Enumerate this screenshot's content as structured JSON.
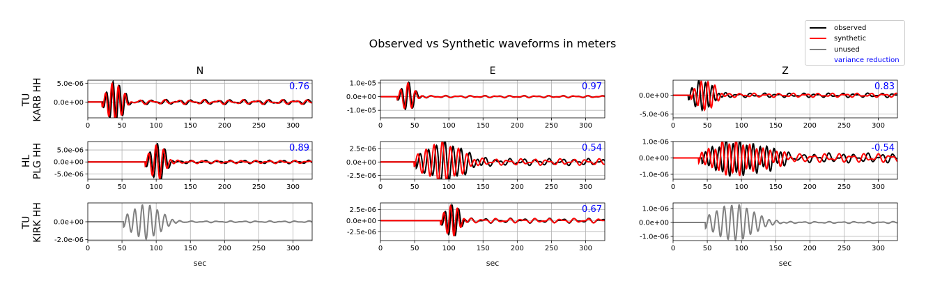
{
  "title": "Observed vs Synthetic waveforms in meters",
  "legend": {
    "observed": "observed",
    "synthetic": "synthetic",
    "unused": "unused",
    "variance_reduction": "variance reduction"
  },
  "colors": {
    "observed": "#000000",
    "synthetic": "#ff0000",
    "unused": "#808080",
    "variance_reduction": "#0000ff"
  },
  "columns": [
    "N",
    "E",
    "Z"
  ],
  "rows": [
    {
      "label_top": "TU",
      "label_bottom": "KARB HH"
    },
    {
      "label_top": "HL",
      "label_bottom": "PLG HH"
    },
    {
      "label_top": "TU",
      "label_bottom": "KIRK HH"
    }
  ],
  "xlabel": "sec",
  "chart_data": {
    "type": "line",
    "grid": true,
    "legend_placement": "top-right",
    "xlim": [
      0,
      328
    ],
    "xticks": [
      0,
      50,
      100,
      150,
      200,
      250,
      300
    ],
    "panels": [
      {
        "row": 0,
        "col": 0,
        "component": "N",
        "variance_reduction": "0.76",
        "used": true,
        "ylim": [
          -4.2e-06,
          5.8e-06
        ],
        "yticks": [
          0,
          5e-06
        ],
        "ytick_labels": [
          "0.0e+00",
          "5.0e-06"
        ],
        "amplitude": 5.4e-06,
        "arrival": 25,
        "period": 9.5,
        "cycles": 3.5,
        "coda_amp": 0.12,
        "syn_shift": 1.2
      },
      {
        "row": 0,
        "col": 1,
        "component": "E",
        "variance_reduction": "0.97",
        "used": true,
        "ylim": [
          -1.55e-05,
          1.2e-05
        ],
        "yticks": [
          -1e-05,
          0,
          1e-05
        ],
        "ytick_labels": [
          "-1.0e-05",
          "0.0e+00",
          "1.0e-05"
        ],
        "amplitude": 1.05e-05,
        "arrival": 28,
        "period": 11,
        "cycles": 2.5,
        "coda_amp": 0.08,
        "syn_shift": 1.0
      },
      {
        "row": 0,
        "col": 2,
        "component": "Z",
        "variance_reduction": "0.83",
        "used": true,
        "ylim": [
          -6e-06,
          4e-06
        ],
        "yticks": [
          -5e-06,
          0
        ],
        "ytick_labels": [
          "-5.0e-06",
          "0.0e+00"
        ],
        "amplitude": 4.2e-06,
        "arrival": 25,
        "period": 10,
        "cycles": 4,
        "coda_amp": 0.14,
        "syn_shift": -4
      },
      {
        "row": 1,
        "col": 0,
        "component": "N",
        "variance_reduction": "0.89",
        "used": true,
        "ylim": [
          -7.2e-06,
          8.5e-06
        ],
        "yticks": [
          -5e-06,
          0,
          5e-06
        ],
        "ytick_labels": [
          "-5.0e-06",
          "0.0e+00",
          "5.0e-06"
        ],
        "amplitude": 7.8e-06,
        "arrival": 88,
        "period": 11,
        "cycles": 3,
        "coda_amp": 0.09,
        "syn_shift": 1.5
      },
      {
        "row": 1,
        "col": 1,
        "component": "E",
        "variance_reduction": "0.54",
        "used": true,
        "ylim": [
          -3.2e-06,
          3.8e-06
        ],
        "yticks": [
          -2.5e-06,
          0,
          2.5e-06
        ],
        "ytick_labels": [
          "-2.5e-06",
          "0.0e+00",
          "2.5e-06"
        ],
        "amplitude": 3.6e-06,
        "arrival": 55,
        "period": 12,
        "cycles": 7,
        "coda_amp": 0.18,
        "syn_shift": 3
      },
      {
        "row": 1,
        "col": 2,
        "component": "Z",
        "variance_reduction": "-0.54",
        "used": true,
        "ylim": [
          -1.3e-06,
          1e-06
        ],
        "yticks": [
          -1e-06,
          0,
          1e-06
        ],
        "ytick_labels": [
          "-1.0e-06",
          "0.0e+00",
          "1.0e-06"
        ],
        "amplitude": 1e-06,
        "arrival": 45,
        "period": 10,
        "cycles": 12,
        "coda_amp": 0.3,
        "syn_shift": 5
      },
      {
        "row": 2,
        "col": 0,
        "component": "N",
        "variance_reduction": "",
        "used": false,
        "ylim": [
          -2.1e-06,
          2.1e-06
        ],
        "yticks": [
          -2e-06,
          0
        ],
        "ytick_labels": [
          "-2.0e-06",
          "0.0e+00"
        ],
        "amplitude": 1.9e-06,
        "arrival": 55,
        "period": 11,
        "cycles": 6,
        "coda_amp": 0.05,
        "syn_shift": 0
      },
      {
        "row": 2,
        "col": 1,
        "component": "E",
        "variance_reduction": "0.67",
        "used": true,
        "ylim": [
          -4.5e-06,
          4e-06
        ],
        "yticks": [
          -2.5e-06,
          0,
          2.5e-06
        ],
        "ytick_labels": [
          "-2.5e-06",
          "0.0e+00",
          "2.5e-06"
        ],
        "amplitude": 3.9e-06,
        "arrival": 92,
        "period": 10,
        "cycles": 3,
        "coda_amp": 0.14,
        "syn_shift": 1.5
      },
      {
        "row": 2,
        "col": 2,
        "component": "Z",
        "variance_reduction": "",
        "used": false,
        "ylim": [
          -1.3e-06,
          1.4e-06
        ],
        "yticks": [
          -1e-06,
          0,
          1e-06
        ],
        "ytick_labels": [
          "-1.0e-06",
          "0.0e+00",
          "1.0e-06"
        ],
        "amplitude": 1.3e-06,
        "arrival": 50,
        "period": 11,
        "cycles": 8,
        "coda_amp": 0.05,
        "syn_shift": 0
      }
    ]
  }
}
